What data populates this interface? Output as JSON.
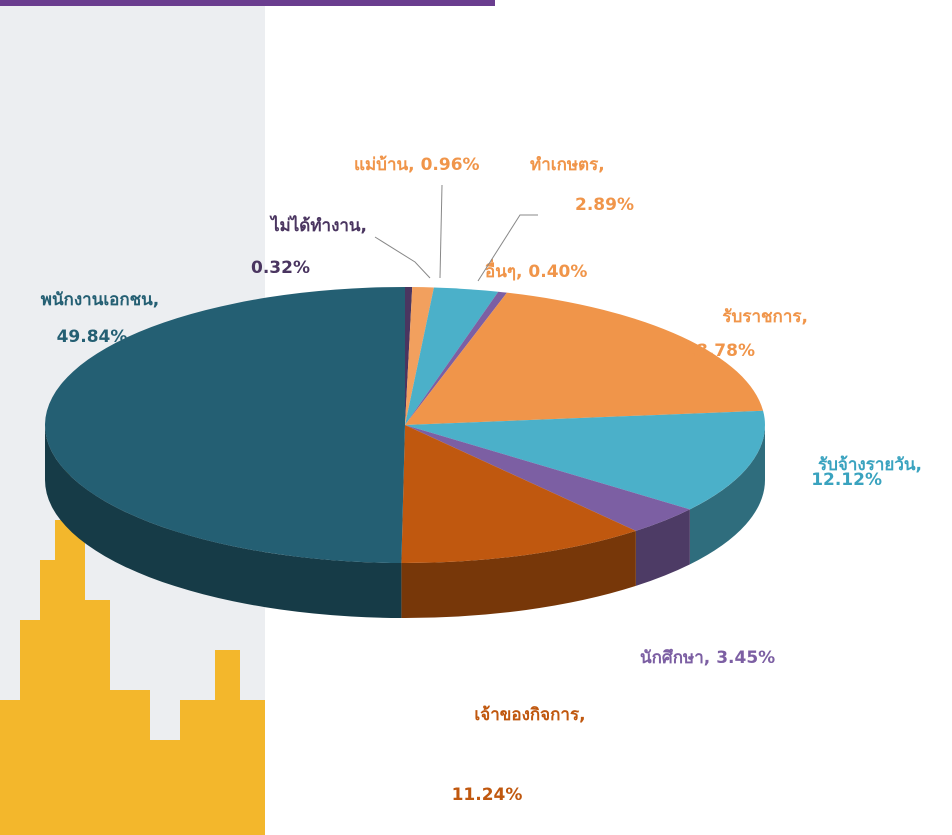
{
  "chart_data": {
    "type": "pie",
    "categories": [
      "ไม่ได้ทำงาน,",
      "แม่บ้าน,",
      "ทำเกษตร,",
      "อื่นๆ,",
      "รับราชการ,",
      "รับจ้างรายวัน,",
      "นักศึกษา,",
      "เจ้าของกิจการ,",
      "พนักงานเอกชน,"
    ],
    "values": [
      0.32,
      0.96,
      2.89,
      0.4,
      18.78,
      12.12,
      3.45,
      11.24,
      49.84
    ],
    "value_labels": [
      "0.32%",
      "0.96%",
      "2.89%",
      "0.40%",
      "18.78%",
      "12.12%",
      "3.45%",
      "11.24%",
      "49.84%"
    ],
    "colors": [
      "#4a3560",
      "#f2a05e",
      "#4bb0c9",
      "#7c5fa3",
      "#f0954a",
      "#4bb0c9",
      "#7c5fa3",
      "#c0580f",
      "#245f73"
    ]
  }
}
